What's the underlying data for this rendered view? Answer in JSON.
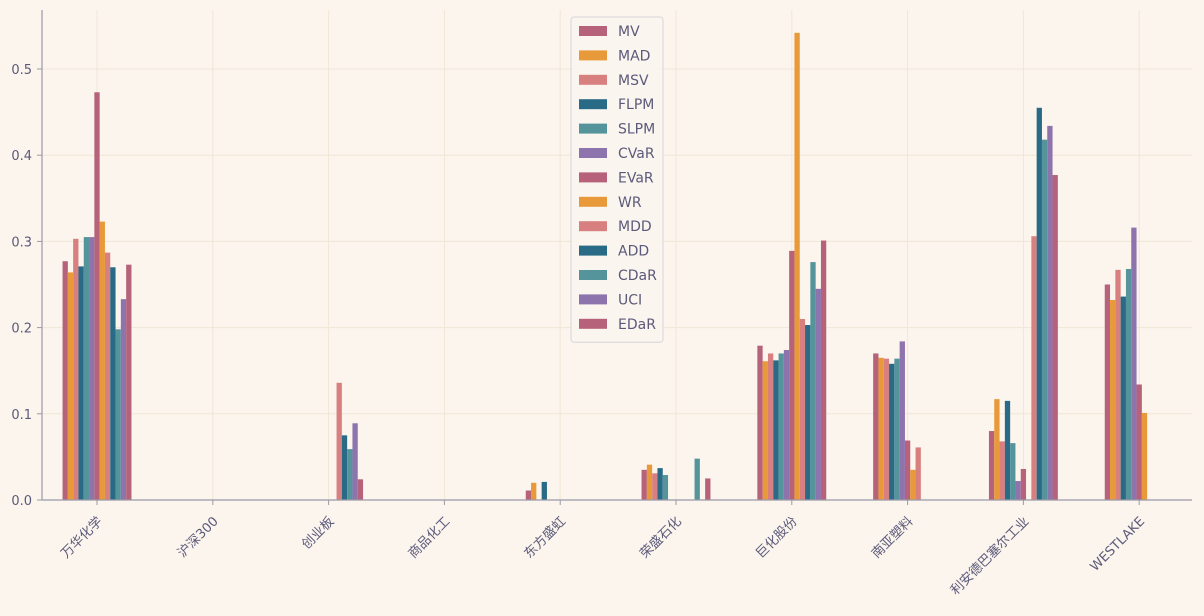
{
  "chart_data": {
    "type": "bar",
    "title": "",
    "xlabel": "",
    "ylabel": "",
    "ylim": [
      0,
      0.55
    ],
    "yticks": [
      0.0,
      0.1,
      0.2,
      0.3,
      0.4,
      0.5
    ],
    "ytick_labels": [
      "0.0",
      "0.1",
      "0.2",
      "0.3",
      "0.4",
      "0.5"
    ],
    "legend_position": "top-center",
    "grid": true,
    "categories": [
      "万华化学",
      "沪深300",
      "创业板",
      "商品化工",
      "东方盛虹",
      "荣盛石化",
      "巨化股份",
      "南亚塑料",
      "利安德巴塞尔工业",
      "WESTLAKE"
    ],
    "series": [
      {
        "name": "MV",
        "color": "#b5627a",
        "values": [
          0.277,
          0,
          0,
          0,
          0.011,
          0.035,
          0.179,
          0.17,
          0.08,
          0.25
        ]
      },
      {
        "name": "MAD",
        "color": "#e8993a",
        "values": [
          0.264,
          0,
          0,
          0,
          0.02,
          0.041,
          0.161,
          0.165,
          0.117,
          0.232
        ]
      },
      {
        "name": "MSV",
        "color": "#d88080",
        "values": [
          0.303,
          0,
          0,
          0,
          0,
          0.031,
          0.17,
          0.164,
          0.068,
          0.267
        ]
      },
      {
        "name": "FLPM",
        "color": "#296b86",
        "values": [
          0.271,
          0,
          0,
          0,
          0.021,
          0.037,
          0.162,
          0.158,
          0.115,
          0.236
        ]
      },
      {
        "name": "SLPM",
        "color": "#56949c",
        "values": [
          0.305,
          0,
          0,
          0,
          0,
          0.029,
          0.17,
          0.164,
          0.066,
          0.268
        ]
      },
      {
        "name": "CVaR",
        "color": "#8e74ad",
        "values": [
          0.305,
          0,
          0,
          0,
          0,
          0,
          0.174,
          0.184,
          0.022,
          0.316
        ]
      },
      {
        "name": "EVaR",
        "color": "#b5627a",
        "values": [
          0.473,
          0,
          0,
          0,
          0,
          0,
          0.289,
          0.069,
          0.036,
          0.134
        ]
      },
      {
        "name": "WR",
        "color": "#e8993a",
        "values": [
          0.323,
          0,
          0,
          0,
          0,
          0,
          0.542,
          0.035,
          0,
          0.101
        ]
      },
      {
        "name": "MDD",
        "color": "#d88080",
        "values": [
          0.287,
          0,
          0.136,
          0,
          0,
          0,
          0.21,
          0.061,
          0.306,
          0
        ]
      },
      {
        "name": "ADD",
        "color": "#296b86",
        "values": [
          0.27,
          0,
          0.075,
          0,
          0,
          0,
          0.203,
          0,
          0.455,
          0
        ]
      },
      {
        "name": "CDaR",
        "color": "#56949c",
        "values": [
          0.198,
          0,
          0.059,
          0,
          0,
          0.048,
          0.276,
          0,
          0.418,
          0
        ]
      },
      {
        "name": "UCI",
        "color": "#8e74ad",
        "values": [
          0.233,
          0,
          0.089,
          0,
          0,
          0,
          0.245,
          0,
          0.434,
          0
        ]
      },
      {
        "name": "EDaR",
        "color": "#b5627a",
        "values": [
          0.273,
          0,
          0.024,
          0,
          0,
          0.025,
          0.301,
          0,
          0.377,
          0
        ]
      }
    ]
  }
}
